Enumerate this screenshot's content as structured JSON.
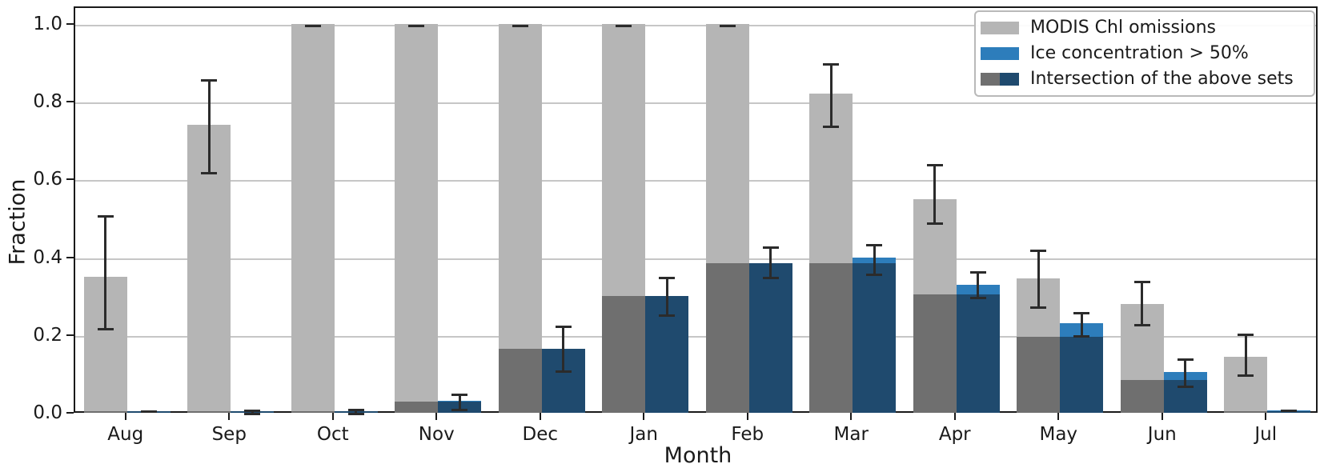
{
  "figure": {
    "ylabel": "Fraction",
    "xlabel": "Month",
    "background": "#ffffff",
    "frame_color": "#1a1a1a",
    "gridline_color": "#c6c6c6",
    "errorbar_color": "#2b2b2b"
  },
  "legend": {
    "position": "upper right",
    "items": [
      {
        "label": "MODIS Chl omissions",
        "swatch": "solid",
        "color": "#b5b5b5"
      },
      {
        "label": "Ice concentration > 50%",
        "swatch": "solid",
        "color": "#2d7dbb"
      },
      {
        "label": "Intersection of the above sets",
        "swatch": "split",
        "colors": [
          "#6f6f6f",
          "#1f4a6e"
        ]
      }
    ]
  },
  "chart_data": {
    "type": "bar",
    "title": "",
    "xlabel": "Month",
    "ylabel": "Fraction",
    "ylim": [
      0.0,
      1.045
    ],
    "yticks": [
      1.0,
      0.8,
      0.6,
      0.4,
      0.2,
      0.0
    ],
    "ytick_labels": [
      "1.0",
      "0.8",
      "0.6",
      "0.4",
      "0.2",
      "0.0"
    ],
    "grid": true,
    "legend_position": "upper right",
    "categories": [
      "Aug",
      "Sep",
      "Oct",
      "Nov",
      "Dec",
      "Jan",
      "Feb",
      "Mar",
      "Apr",
      "May",
      "Jun",
      "Jul"
    ],
    "series": [
      {
        "name": "MODIS Chl omissions",
        "color": "#b5b5b5",
        "values": [
          0.35,
          0.74,
          1.0,
          1.0,
          1.0,
          1.0,
          1.0,
          0.82,
          0.55,
          0.345,
          0.28,
          0.145
        ],
        "err_low": [
          0.22,
          0.62,
          1.0,
          1.0,
          1.0,
          1.0,
          1.0,
          0.74,
          0.49,
          0.275,
          0.23,
          0.1
        ],
        "err_high": [
          0.51,
          0.86,
          1.0,
          1.0,
          1.0,
          1.0,
          1.0,
          0.9,
          0.64,
          0.42,
          0.34,
          0.205
        ]
      },
      {
        "name": "Ice concentration > 50%",
        "color": "#2d7dbb",
        "values": [
          0.005,
          0.005,
          0.005,
          0.03,
          0.165,
          0.3,
          0.385,
          0.4,
          0.33,
          0.23,
          0.105,
          0.006
        ],
        "err_low": [
          0.003,
          0.002,
          0.002,
          0.012,
          0.11,
          0.255,
          0.35,
          0.36,
          0.3,
          0.2,
          0.07,
          0.004
        ],
        "err_high": [
          0.007,
          0.01,
          0.012,
          0.05,
          0.225,
          0.35,
          0.43,
          0.435,
          0.365,
          0.26,
          0.14,
          0.01
        ]
      },
      {
        "name": "Intersection of the above sets",
        "colors": [
          "#6f6f6f",
          "#1f4a6e"
        ],
        "values": [
          0.004,
          0.004,
          0.004,
          0.028,
          0.165,
          0.3,
          0.385,
          0.385,
          0.305,
          0.195,
          0.085,
          0.005
        ]
      }
    ]
  }
}
